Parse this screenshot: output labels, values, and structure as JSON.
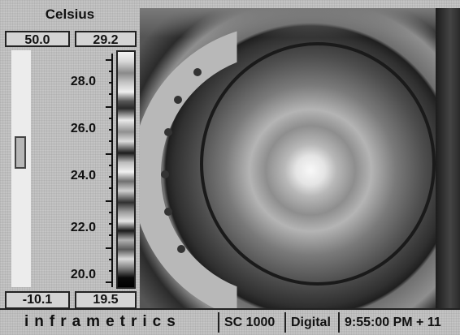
{
  "palette": {
    "units": "Celsius",
    "span_max": "50.0",
    "level_max": "29.2",
    "span_min": "-10.1",
    "level_min": "19.5",
    "scale_ticks": [
      "28.0",
      "26.0",
      "24.0",
      "22.0",
      "20.0"
    ]
  },
  "status_bar": {
    "brand": "inframetrics",
    "model": "SC 1000",
    "mode": "Digital",
    "time": "9:55:00 PM + 11"
  },
  "colors": {
    "background": "#c6c6c6",
    "border": "#222222"
  },
  "icons": [
    "slider-thumb-icon"
  ]
}
